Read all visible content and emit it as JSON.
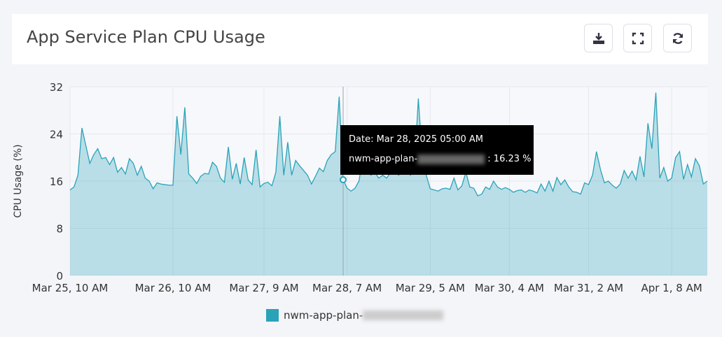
{
  "chart_data": {
    "type": "area",
    "title": "App Service Plan CPU Usage",
    "y_label": "CPU Usage (%)",
    "categories": [
      "Mar 25, 10 AM",
      null,
      null,
      null,
      null,
      null,
      null,
      null,
      null,
      null,
      null,
      null,
      null,
      null,
      null,
      null,
      null,
      null,
      null,
      null,
      null,
      null,
      null,
      null,
      null,
      null,
      "Mar 26, 10 AM",
      null,
      null,
      null,
      null,
      null,
      null,
      null,
      null,
      null,
      null,
      null,
      null,
      null,
      null,
      null,
      null,
      null,
      null,
      null,
      null,
      null,
      null,
      "Mar 27, 9 AM",
      null,
      null,
      null,
      null,
      null,
      null,
      null,
      null,
      null,
      null,
      null,
      null,
      null,
      null,
      null,
      null,
      null,
      null,
      null,
      null,
      "Mar 28, 7 AM",
      null,
      null,
      null,
      null,
      null,
      null,
      null,
      null,
      null,
      null,
      null,
      null,
      null,
      null,
      null,
      null,
      null,
      null,
      null,
      null,
      "Mar 29, 5 AM",
      null,
      null,
      null,
      null,
      null,
      null,
      null,
      null,
      null,
      null,
      null,
      null,
      null,
      null,
      null,
      null,
      null,
      null,
      null,
      "Mar 30, 4 AM",
      null,
      null,
      null,
      null,
      null,
      null,
      null,
      null,
      null,
      null,
      null,
      null,
      null,
      null,
      null,
      null,
      null,
      null,
      null,
      "Mar 31, 2 AM",
      null,
      null,
      null,
      null,
      null,
      null,
      null,
      null,
      null,
      null,
      null,
      null,
      null,
      null,
      null,
      null,
      null,
      null,
      null,
      null,
      "Apr 1, 8 AM",
      null,
      null,
      null,
      null,
      null,
      null,
      null,
      null,
      null
    ],
    "series": [
      {
        "name": "nwm-app-plan-",
        "color": "#2aa3b9",
        "values": [
          14.5,
          15,
          17,
          25,
          22,
          19,
          20.5,
          21.5,
          19.8,
          20,
          18.8,
          20,
          17.5,
          18.3,
          17.2,
          19.8,
          19,
          17,
          18.5,
          16.5,
          16,
          14.7,
          15.7,
          15.5,
          15.4,
          15.3,
          15.3,
          27,
          20.5,
          28.5,
          17.2,
          16.5,
          15.6,
          16.8,
          17.3,
          17.2,
          19.2,
          18.5,
          16.5,
          15.8,
          21.8,
          16.3,
          19,
          15.5,
          20,
          16.2,
          15.4,
          21.3,
          15,
          15.6,
          15.8,
          15.2,
          17.5,
          27,
          17,
          22.6,
          17,
          19.5,
          18.6,
          17.8,
          17,
          15.5,
          16.8,
          18.2,
          17.6,
          19.5,
          20.5,
          21,
          30.3,
          16.23,
          14.8,
          14.3,
          14.8,
          16,
          20,
          18,
          17,
          17.5,
          16.5,
          17,
          16.5,
          17.5,
          18,
          17,
          17.5,
          18,
          17,
          18,
          30,
          20,
          17,
          14.7,
          14.5,
          14.3,
          14.7,
          14.8,
          14.6,
          16.5,
          14.5,
          15.2,
          17.5,
          15,
          14.8,
          13.5,
          13.8,
          15,
          14.6,
          16,
          15,
          14.6,
          14.9,
          14.6,
          14.1,
          14.4,
          14.5,
          14.1,
          14.5,
          14.3,
          14,
          15.5,
          14.3,
          16,
          14.3,
          16.6,
          15.4,
          16.2,
          15,
          14.2,
          14.1,
          13.8,
          15.7,
          15.4,
          17,
          21,
          18,
          15.7,
          16,
          15.3,
          14.8,
          15.5,
          17.8,
          16.5,
          17.7,
          16.2,
          20.2,
          16.7,
          25.8,
          21.5,
          31,
          16.5,
          18.3,
          16,
          16.5,
          20,
          21,
          16.3,
          18.8,
          16.7,
          19.8,
          18.6,
          15.5,
          16
        ]
      }
    ],
    "ylim": [
      0,
      32
    ],
    "yticks": [
      0,
      8,
      16,
      24,
      32
    ],
    "grid": true,
    "tooltip": {
      "date": "Date: Mar 28, 2025 05:00 AM",
      "index": 69,
      "value_label": ": 16.23 %"
    }
  }
}
